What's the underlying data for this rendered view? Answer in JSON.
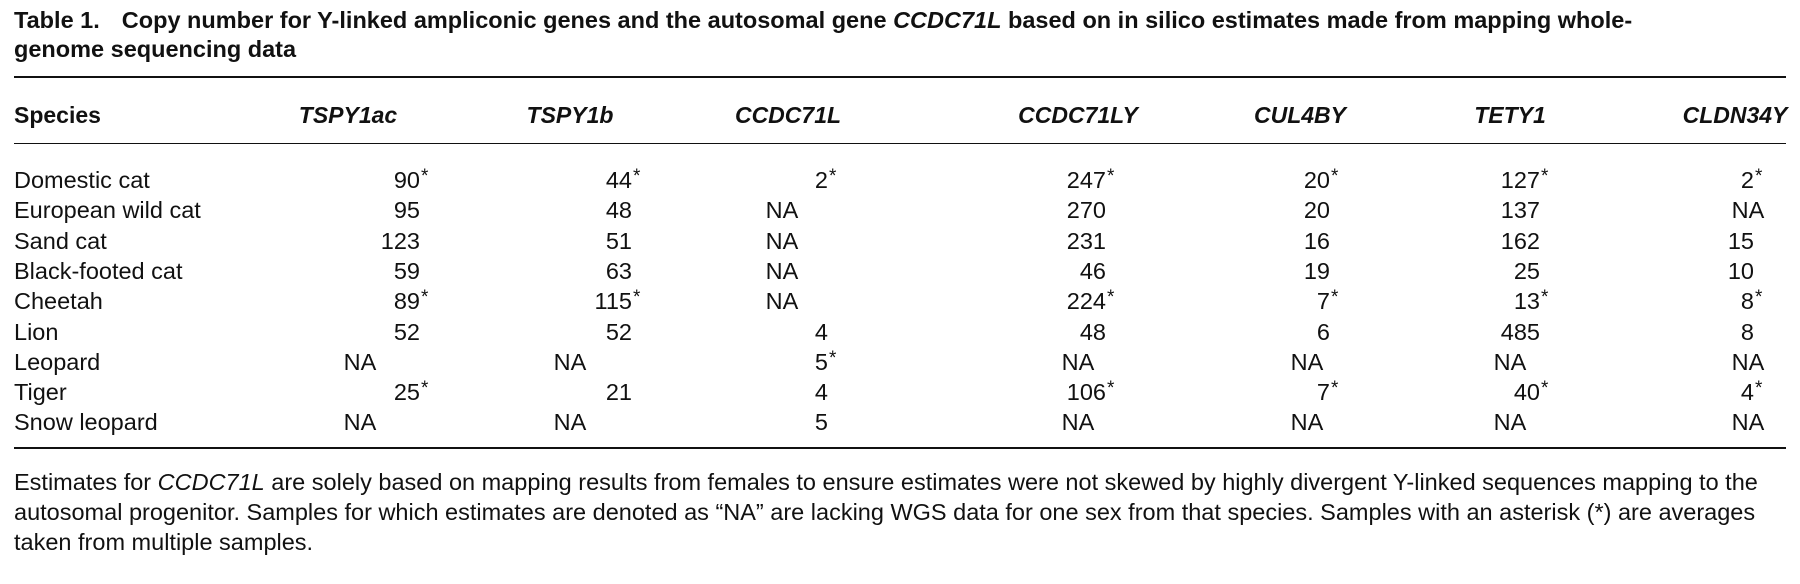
{
  "caption": {
    "label": "Table 1.",
    "text_before": "Copy number for Y-linked ampliconic genes and the autosomal gene ",
    "gene": "CCDC71L",
    "text_after_line1": " based on in silico estimates made from mapping whole-",
    "text_line2": "genome sequencing data"
  },
  "table": {
    "columns": [
      "Species",
      "TSPY1ac",
      "TSPY1b",
      "CCDC71L",
      "CCDC71LY",
      "CUL4BY",
      "TETY1",
      "CLDN34Y"
    ],
    "rows": [
      {
        "species": "Domestic cat",
        "values": [
          "90*",
          "44*",
          "2*",
          "247*",
          "20*",
          "127*",
          "2*"
        ]
      },
      {
        "species": "European wild cat",
        "values": [
          "95",
          "48",
          "NA",
          "270",
          "20",
          "137",
          "NA"
        ]
      },
      {
        "species": "Sand cat",
        "values": [
          "123",
          "51",
          "NA",
          "231",
          "16",
          "162",
          "15"
        ]
      },
      {
        "species": "Black-footed cat",
        "values": [
          "59",
          "63",
          "NA",
          "46",
          "19",
          "25",
          "10"
        ]
      },
      {
        "species": "Cheetah",
        "values": [
          "89*",
          "115*",
          "NA",
          "224*",
          "7*",
          "13*",
          "8*"
        ]
      },
      {
        "species": "Lion",
        "values": [
          "52",
          "52",
          "4",
          "48",
          "6",
          "485",
          "8"
        ]
      },
      {
        "species": "Leopard",
        "values": [
          "NA",
          "NA",
          "5*",
          "NA",
          "NA",
          "NA",
          "NA"
        ]
      },
      {
        "species": "Tiger",
        "values": [
          "25*",
          "21",
          "4",
          "106*",
          "7*",
          "40*",
          "4*"
        ]
      },
      {
        "species": "Snow leopard",
        "values": [
          "NA",
          "NA",
          "5",
          "NA",
          "NA",
          "NA",
          "NA"
        ]
      }
    ]
  },
  "footnote": {
    "p1": "Estimates for ",
    "gene": "CCDC71L",
    "p2": " are solely based on mapping results from females to ensure estimates were not skewed by highly divergent Y-linked sequences mapping to the autosomal progenitor. Samples for which estimates are denoted as “NA” are lacking WGS data for one sex from that species. Samples with an asterisk (*) are averages taken from multiple samples."
  }
}
